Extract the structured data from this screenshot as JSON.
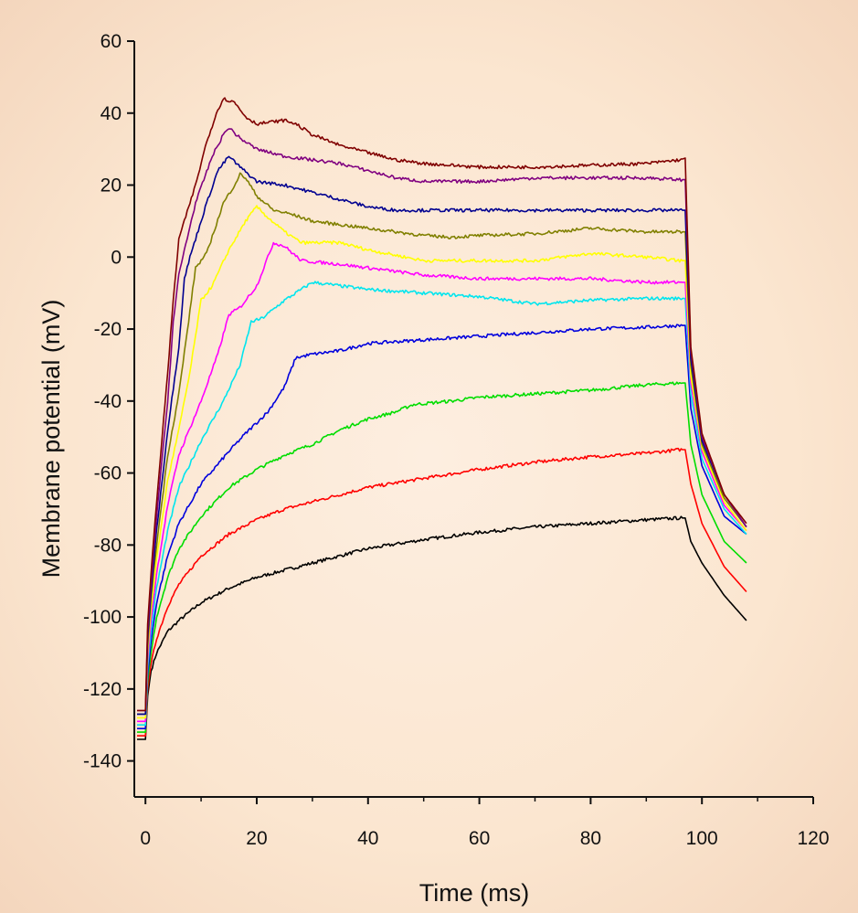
{
  "chart_data": {
    "type": "line",
    "title": "",
    "xlabel": "Time (ms)",
    "ylabel": "Membrane potential (mV)",
    "xlim": [
      -2,
      120
    ],
    "ylim": [
      -150,
      60
    ],
    "xticks": [
      0,
      20,
      40,
      60,
      80,
      100,
      120
    ],
    "yticks": [
      60,
      40,
      20,
      0,
      -20,
      -40,
      -60,
      -80,
      -100,
      -120,
      -140
    ],
    "xtick_labels": [
      "0",
      "20",
      "40",
      "60",
      "80",
      "100",
      "120"
    ],
    "ytick_labels": [
      "60",
      "40",
      "20",
      "0",
      "-20",
      "-40",
      "-60",
      "-80",
      "-100",
      "-120",
      "-140"
    ],
    "grid": false,
    "legend": "none",
    "series": [
      {
        "color": "#000000",
        "points": [
          [
            -1.5,
            -134
          ],
          [
            0,
            -134
          ],
          [
            0.4,
            -122
          ],
          [
            1,
            -115
          ],
          [
            2,
            -110
          ],
          [
            4,
            -104
          ],
          [
            6,
            -101
          ],
          [
            10,
            -96
          ],
          [
            15,
            -92
          ],
          [
            20,
            -89
          ],
          [
            25,
            -87
          ],
          [
            30,
            -85
          ],
          [
            40,
            -81
          ],
          [
            50,
            -78.5
          ],
          [
            60,
            -76.5
          ],
          [
            70,
            -75
          ],
          [
            80,
            -74
          ],
          [
            90,
            -73
          ],
          [
            96,
            -72.5
          ],
          [
            97,
            -72.5
          ],
          [
            98,
            -79
          ],
          [
            100,
            -85
          ],
          [
            104,
            -94
          ],
          [
            108,
            -101
          ]
        ]
      },
      {
        "color": "#ff0000",
        "points": [
          [
            -1.5,
            -133
          ],
          [
            0,
            -133
          ],
          [
            0.4,
            -120
          ],
          [
            1,
            -113
          ],
          [
            2,
            -106
          ],
          [
            4,
            -97
          ],
          [
            6,
            -91
          ],
          [
            10,
            -83
          ],
          [
            15,
            -77
          ],
          [
            20,
            -73
          ],
          [
            25,
            -70
          ],
          [
            30,
            -68
          ],
          [
            40,
            -64
          ],
          [
            50,
            -61.5
          ],
          [
            60,
            -59
          ],
          [
            70,
            -57
          ],
          [
            80,
            -55.5
          ],
          [
            90,
            -54.5
          ],
          [
            96,
            -53.5
          ],
          [
            97,
            -53.5
          ],
          [
            98,
            -63
          ],
          [
            100,
            -74
          ],
          [
            104,
            -86
          ],
          [
            108,
            -93
          ]
        ]
      },
      {
        "color": "#00dd00",
        "points": [
          [
            -1.5,
            -132
          ],
          [
            0,
            -132
          ],
          [
            0.4,
            -118
          ],
          [
            1,
            -110
          ],
          [
            2,
            -100
          ],
          [
            4,
            -89
          ],
          [
            6,
            -81
          ],
          [
            10,
            -72
          ],
          [
            15,
            -64
          ],
          [
            20,
            -59
          ],
          [
            25,
            -55
          ],
          [
            30,
            -52
          ],
          [
            35,
            -48
          ],
          [
            40,
            -45
          ],
          [
            45,
            -43
          ],
          [
            48,
            -41
          ],
          [
            55,
            -40
          ],
          [
            60,
            -39
          ],
          [
            70,
            -38
          ],
          [
            80,
            -37
          ],
          [
            90,
            -35.5
          ],
          [
            96,
            -35
          ],
          [
            97,
            -35
          ],
          [
            98,
            -52
          ],
          [
            100,
            -66
          ],
          [
            104,
            -79
          ],
          [
            108,
            -85
          ]
        ]
      },
      {
        "color": "#0000dd",
        "points": [
          [
            -1.5,
            -131
          ],
          [
            0,
            -131
          ],
          [
            0.4,
            -116
          ],
          [
            1,
            -107
          ],
          [
            2,
            -96
          ],
          [
            4,
            -83
          ],
          [
            6,
            -74
          ],
          [
            10,
            -63
          ],
          [
            15,
            -54
          ],
          [
            18,
            -49
          ],
          [
            22,
            -43
          ],
          [
            25,
            -36
          ],
          [
            27,
            -28
          ],
          [
            30,
            -27
          ],
          [
            35,
            -26
          ],
          [
            40,
            -24
          ],
          [
            50,
            -23
          ],
          [
            60,
            -22
          ],
          [
            70,
            -21
          ],
          [
            80,
            -20
          ],
          [
            90,
            -19.5
          ],
          [
            96,
            -19
          ],
          [
            97,
            -19
          ],
          [
            98,
            -42
          ],
          [
            100,
            -58
          ],
          [
            104,
            -72
          ],
          [
            108,
            -77
          ]
        ]
      },
      {
        "color": "#00e5ee",
        "points": [
          [
            -1.5,
            -130
          ],
          [
            0,
            -130
          ],
          [
            0.4,
            -114
          ],
          [
            1,
            -104
          ],
          [
            2,
            -92
          ],
          [
            4,
            -76
          ],
          [
            6,
            -64
          ],
          [
            10,
            -51
          ],
          [
            14,
            -40
          ],
          [
            17,
            -30
          ],
          [
            19,
            -18
          ],
          [
            21,
            -17
          ],
          [
            25,
            -12
          ],
          [
            30,
            -7
          ],
          [
            35,
            -8
          ],
          [
            40,
            -9
          ],
          [
            50,
            -10
          ],
          [
            60,
            -11
          ],
          [
            70,
            -13
          ],
          [
            80,
            -12
          ],
          [
            90,
            -11.5
          ],
          [
            96,
            -11.5
          ],
          [
            97,
            -11.5
          ],
          [
            98,
            -38
          ],
          [
            100,
            -56
          ],
          [
            104,
            -70
          ],
          [
            108,
            -77
          ]
        ]
      },
      {
        "color": "#ff00ff",
        "points": [
          [
            -1.5,
            -129
          ],
          [
            0,
            -129
          ],
          [
            0.4,
            -112
          ],
          [
            1,
            -101
          ],
          [
            2,
            -88
          ],
          [
            4,
            -69
          ],
          [
            6,
            -55
          ],
          [
            10,
            -40
          ],
          [
            13,
            -27
          ],
          [
            15,
            -16
          ],
          [
            17,
            -14
          ],
          [
            20,
            -8
          ],
          [
            22,
            0
          ],
          [
            23,
            4
          ],
          [
            25,
            3
          ],
          [
            28,
            -1
          ],
          [
            35,
            -2
          ],
          [
            40,
            -3
          ],
          [
            50,
            -5
          ],
          [
            60,
            -6
          ],
          [
            70,
            -6
          ],
          [
            80,
            -6
          ],
          [
            90,
            -7
          ],
          [
            96,
            -7
          ],
          [
            97,
            -7
          ],
          [
            98,
            -35
          ],
          [
            100,
            -54
          ],
          [
            104,
            -69
          ],
          [
            108,
            -76
          ]
        ]
      },
      {
        "color": "#ffff00",
        "points": [
          [
            -1.5,
            -128
          ],
          [
            0,
            -128
          ],
          [
            0.4,
            -110
          ],
          [
            1,
            -98
          ],
          [
            2,
            -84
          ],
          [
            4,
            -62
          ],
          [
            6,
            -48
          ],
          [
            8,
            -32
          ],
          [
            10,
            -12
          ],
          [
            12,
            -8
          ],
          [
            15,
            2
          ],
          [
            18,
            10
          ],
          [
            20,
            14
          ],
          [
            22,
            11
          ],
          [
            25,
            7
          ],
          [
            28,
            4
          ],
          [
            35,
            4
          ],
          [
            40,
            2
          ],
          [
            50,
            -1
          ],
          [
            60,
            -1
          ],
          [
            70,
            -1
          ],
          [
            80,
            1
          ],
          [
            90,
            0
          ],
          [
            96,
            -1
          ],
          [
            97,
            -1
          ],
          [
            98,
            -33
          ],
          [
            100,
            -53
          ],
          [
            104,
            -68
          ],
          [
            108,
            -76
          ]
        ]
      },
      {
        "color": "#808000",
        "points": [
          [
            -1.5,
            -127
          ],
          [
            0,
            -127
          ],
          [
            0.4,
            -108
          ],
          [
            1,
            -95
          ],
          [
            2,
            -80
          ],
          [
            4,
            -55
          ],
          [
            6,
            -38
          ],
          [
            8,
            -15
          ],
          [
            9,
            -3
          ],
          [
            11,
            1
          ],
          [
            14,
            15
          ],
          [
            16,
            20
          ],
          [
            17,
            23
          ],
          [
            18,
            22
          ],
          [
            20,
            17
          ],
          [
            23,
            13
          ],
          [
            26,
            12
          ],
          [
            30,
            10
          ],
          [
            35,
            9
          ],
          [
            40,
            8
          ],
          [
            50,
            6
          ],
          [
            55,
            5.5
          ],
          [
            60,
            6
          ],
          [
            70,
            6.5
          ],
          [
            80,
            8
          ],
          [
            85,
            7.5
          ],
          [
            90,
            7
          ],
          [
            96,
            7
          ],
          [
            97,
            7
          ],
          [
            98,
            -30
          ],
          [
            100,
            -52
          ],
          [
            104,
            -67
          ],
          [
            108,
            -75
          ]
        ]
      },
      {
        "color": "#000090",
        "points": [
          [
            -1.5,
            -127
          ],
          [
            0,
            -127
          ],
          [
            0.4,
            -106
          ],
          [
            1,
            -93
          ],
          [
            2,
            -76
          ],
          [
            4,
            -48
          ],
          [
            6,
            -25
          ],
          [
            7,
            -6
          ],
          [
            8,
            0
          ],
          [
            11,
            15
          ],
          [
            13,
            24
          ],
          [
            15,
            28
          ],
          [
            17,
            25
          ],
          [
            20,
            21
          ],
          [
            25,
            20
          ],
          [
            30,
            18
          ],
          [
            35,
            16
          ],
          [
            40,
            14
          ],
          [
            45,
            13
          ],
          [
            50,
            13
          ],
          [
            60,
            13
          ],
          [
            70,
            13
          ],
          [
            80,
            13
          ],
          [
            90,
            13
          ],
          [
            96,
            13
          ],
          [
            97,
            13
          ],
          [
            98,
            -28
          ],
          [
            100,
            -51
          ],
          [
            104,
            -66
          ],
          [
            108,
            -75
          ]
        ]
      },
      {
        "color": "#800080",
        "points": [
          [
            -1.5,
            -126
          ],
          [
            0,
            -126
          ],
          [
            0.4,
            -104
          ],
          [
            1,
            -91
          ],
          [
            2,
            -72
          ],
          [
            4,
            -40
          ],
          [
            5,
            -18
          ],
          [
            6,
            -5
          ],
          [
            7,
            2
          ],
          [
            9,
            15
          ],
          [
            12,
            28
          ],
          [
            14,
            34
          ],
          [
            15,
            36
          ],
          [
            17,
            33
          ],
          [
            20,
            30
          ],
          [
            25,
            28
          ],
          [
            30,
            27
          ],
          [
            35,
            26
          ],
          [
            40,
            24
          ],
          [
            45,
            22
          ],
          [
            50,
            21
          ],
          [
            60,
            21
          ],
          [
            70,
            22
          ],
          [
            80,
            22
          ],
          [
            90,
            22
          ],
          [
            96,
            21.5
          ],
          [
            97,
            21.5
          ],
          [
            98,
            -26
          ],
          [
            100,
            -50
          ],
          [
            104,
            -66
          ],
          [
            108,
            -75
          ]
        ]
      },
      {
        "color": "#800000",
        "points": [
          [
            -1.5,
            -126
          ],
          [
            0,
            -126
          ],
          [
            0.4,
            -102
          ],
          [
            1,
            -88
          ],
          [
            2,
            -68
          ],
          [
            4,
            -32
          ],
          [
            5,
            -12
          ],
          [
            6,
            5
          ],
          [
            7,
            10
          ],
          [
            9,
            20
          ],
          [
            11,
            32
          ],
          [
            13,
            41
          ],
          [
            14,
            44
          ],
          [
            16,
            43
          ],
          [
            18,
            39
          ],
          [
            20,
            37
          ],
          [
            25,
            38
          ],
          [
            27,
            37
          ],
          [
            30,
            34
          ],
          [
            35,
            31
          ],
          [
            40,
            29
          ],
          [
            45,
            27
          ],
          [
            50,
            26
          ],
          [
            60,
            25
          ],
          [
            70,
            25
          ],
          [
            80,
            25.5
          ],
          [
            90,
            26
          ],
          [
            96,
            27
          ],
          [
            97,
            27.5
          ],
          [
            98,
            -25
          ],
          [
            100,
            -49
          ],
          [
            104,
            -66
          ],
          [
            108,
            -74
          ]
        ]
      }
    ]
  }
}
